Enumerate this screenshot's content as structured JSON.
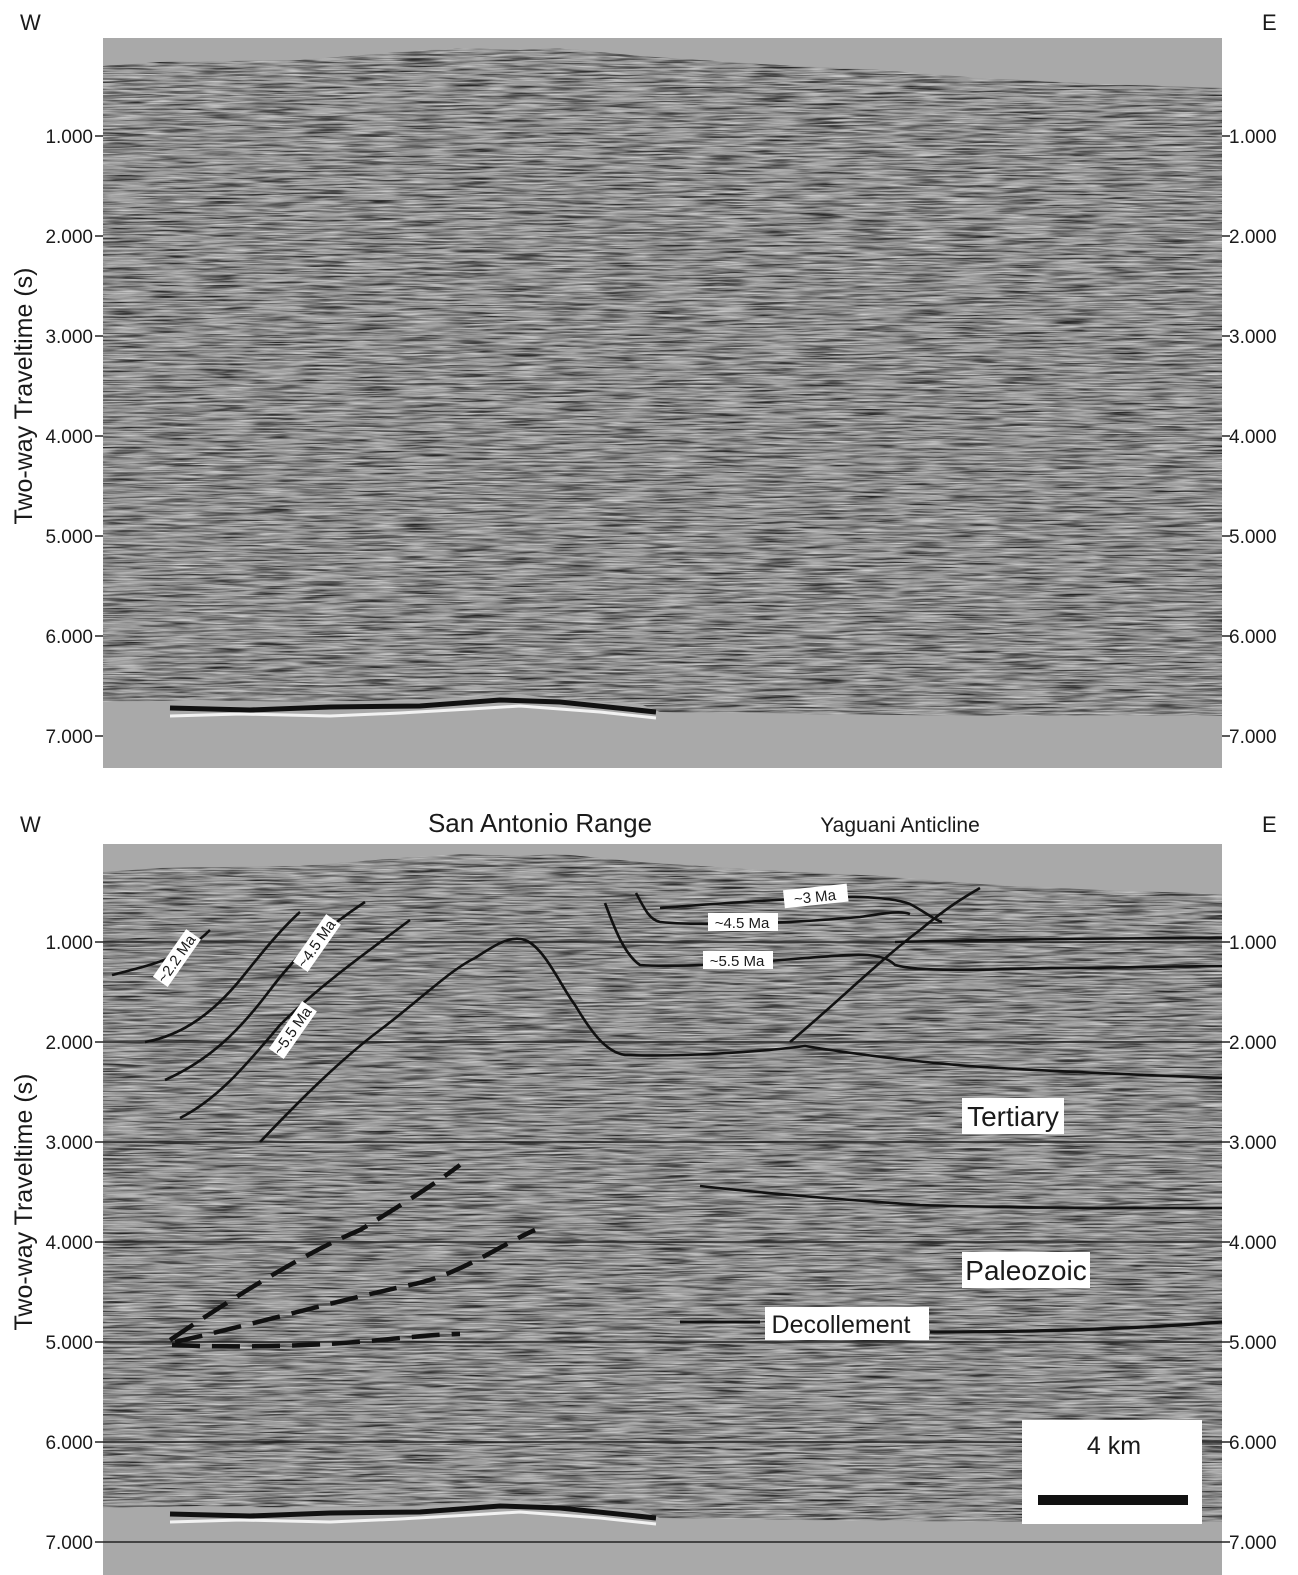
{
  "panels": [
    {
      "id": "top",
      "west": "W",
      "east": "E",
      "ylabel": "Two-way Traveltime (s)",
      "ticks": [
        "1.000",
        "2.000",
        "3.000",
        "4.000",
        "5.000",
        "6.000",
        "7.000"
      ],
      "tick_values_s": [
        1,
        2,
        3,
        4,
        5,
        6,
        7
      ]
    },
    {
      "id": "bottom",
      "west": "W",
      "east": "E",
      "ylabel": "Two-way Traveltime (s)",
      "ticks": [
        "1.000",
        "2.000",
        "3.000",
        "4.000",
        "5.000",
        "6.000",
        "7.000"
      ],
      "tick_values_s": [
        1,
        2,
        3,
        4,
        5,
        6,
        7
      ],
      "titles": {
        "range": "San Antonio Range",
        "anticline": "Yaguani Anticline"
      },
      "age_labels": [
        "~2.2 Ma",
        "~4.5 Ma",
        "~5.5 Ma",
        "~3 Ma",
        "~4.5 Ma",
        "~5.5 Ma"
      ],
      "units": [
        "Tertiary",
        "Paleozoic",
        "Decollement"
      ],
      "scale_bar": "4 km"
    }
  ],
  "colors": {
    "background_gray": "#a9a9a9",
    "seismic_base": "#9c9c9c",
    "interpretation": "#111111"
  }
}
